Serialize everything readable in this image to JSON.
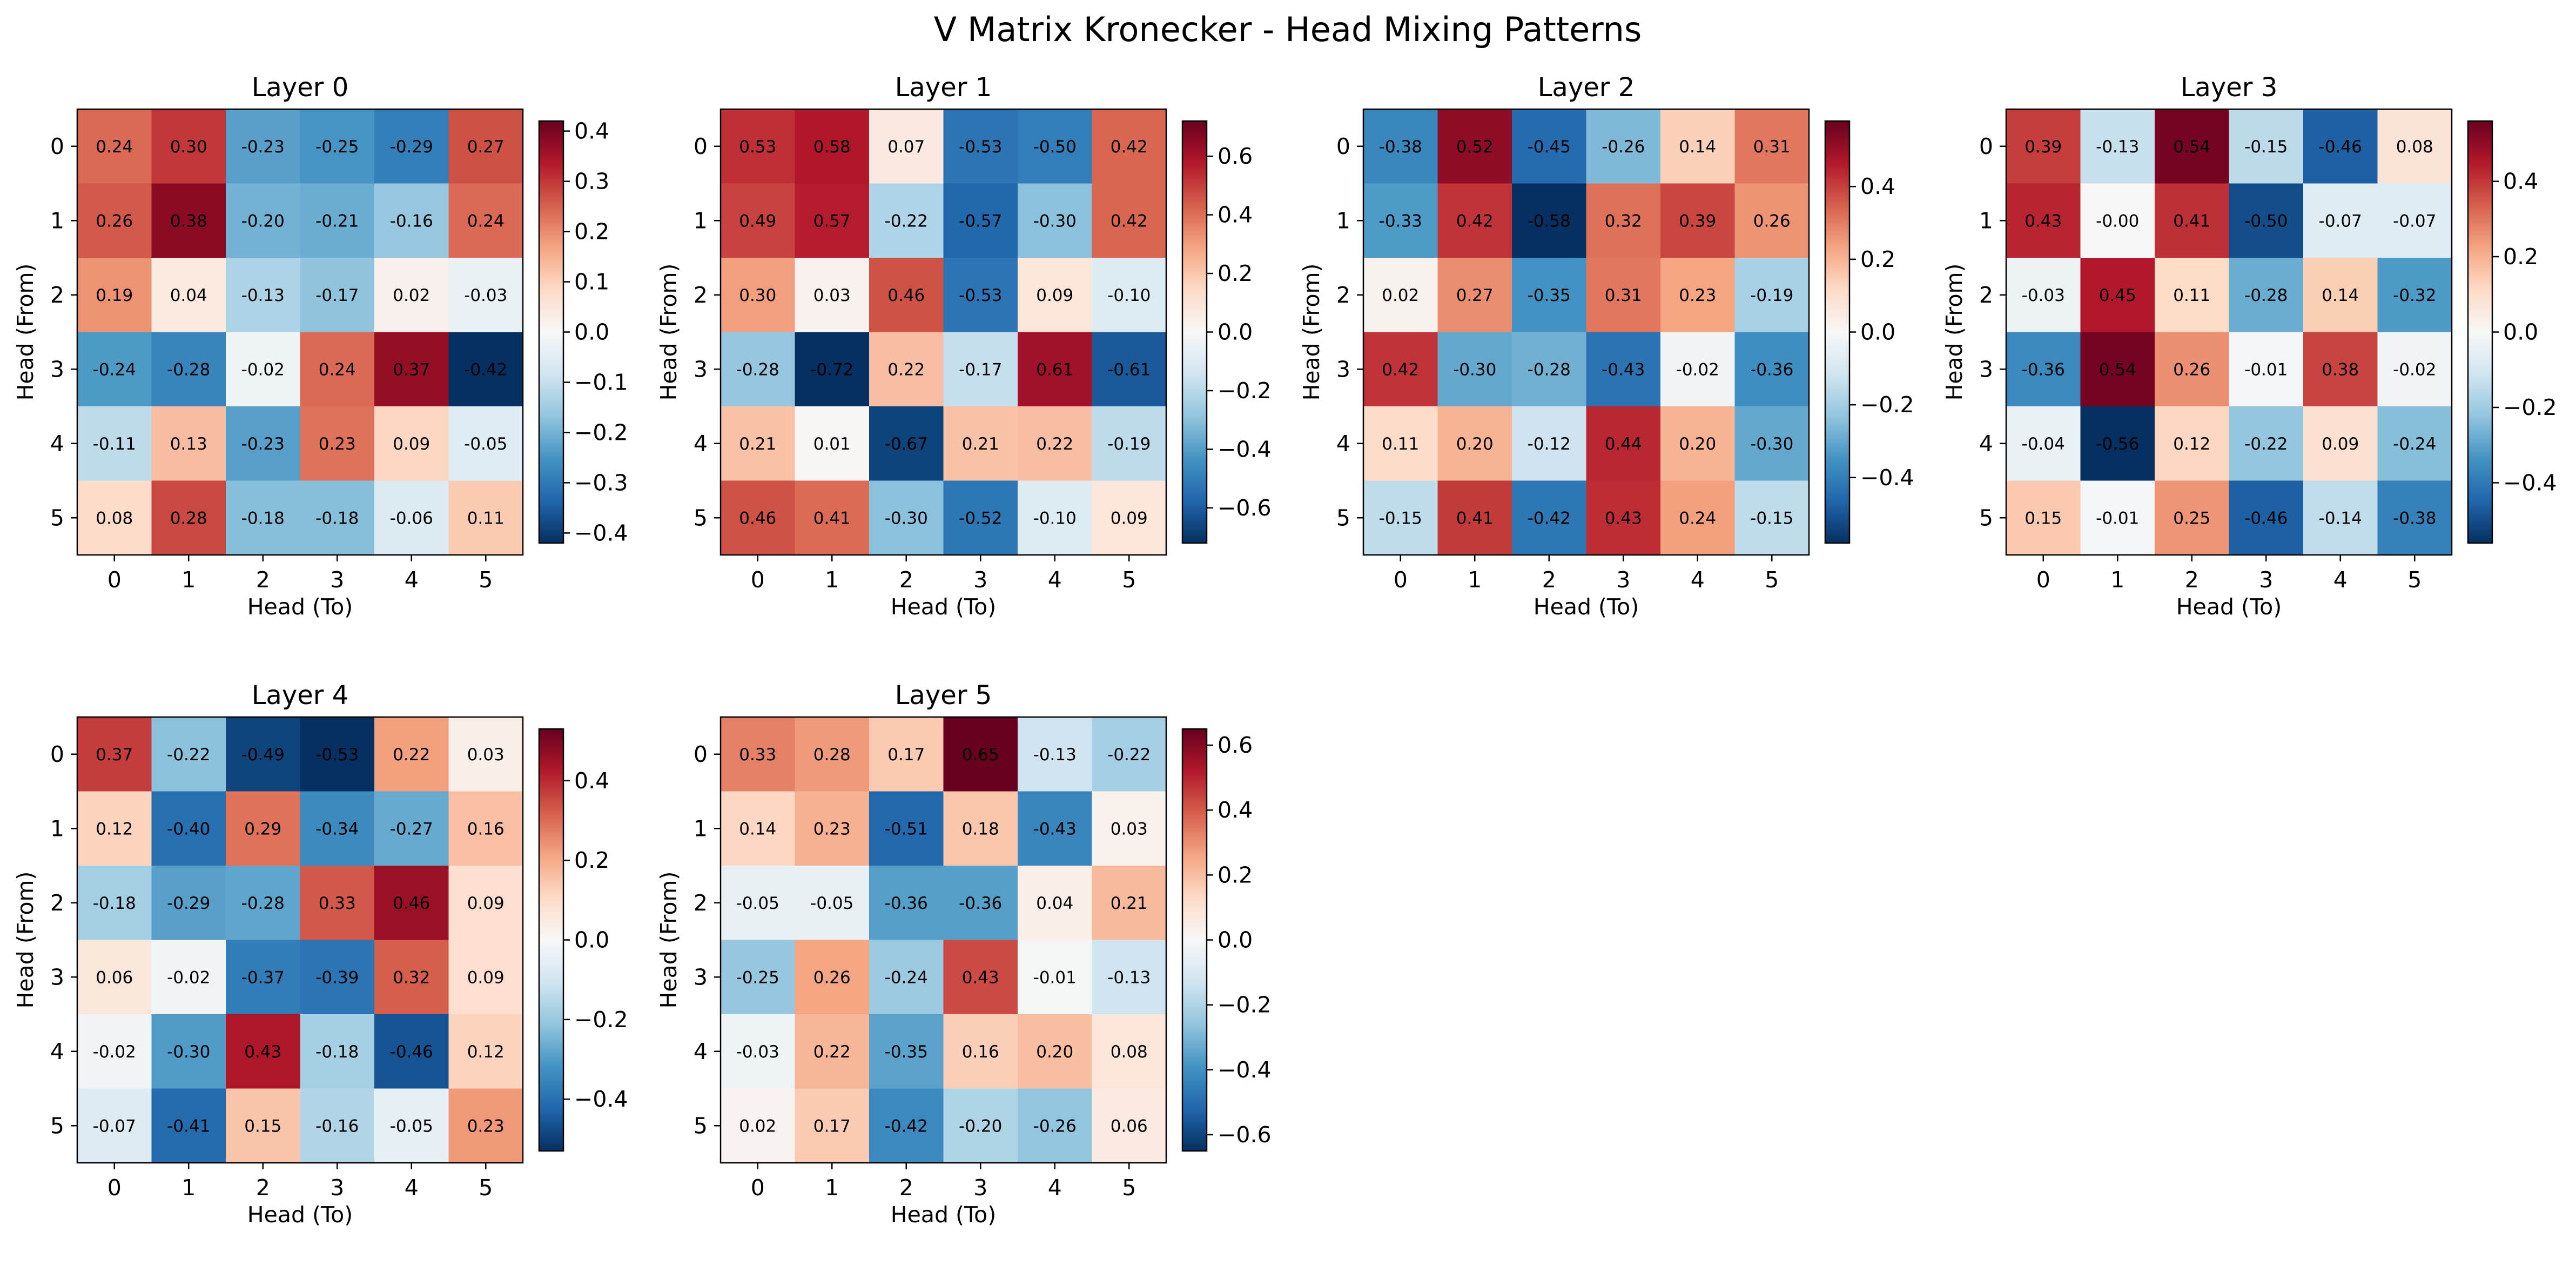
{
  "figure": {
    "title": "V Matrix Kronecker - Head Mixing Patterns"
  },
  "chart_data": [
    {
      "type": "heatmap",
      "title": "Layer 0",
      "xlabel": "Head (To)",
      "ylabel": "Head (From)",
      "x_ticks": [
        "0",
        "1",
        "2",
        "3",
        "4",
        "5"
      ],
      "y_ticks": [
        "0",
        "1",
        "2",
        "3",
        "4",
        "5"
      ],
      "colormap": "RdBu_r",
      "vmin": -0.42,
      "vmax": 0.42,
      "colorbar_ticks": [
        -0.4,
        -0.3,
        -0.2,
        -0.1,
        0.0,
        0.1,
        0.2,
        0.3,
        0.4
      ],
      "colorbar_tick_labels": [
        "−0.4",
        "−0.3",
        "−0.2",
        "−0.1",
        "0.0",
        "0.1",
        "0.2",
        "0.3",
        "0.4"
      ],
      "values": [
        [
          0.24,
          0.3,
          -0.23,
          -0.25,
          -0.29,
          0.27
        ],
        [
          0.26,
          0.38,
          -0.2,
          -0.21,
          -0.16,
          0.24
        ],
        [
          0.19,
          0.04,
          -0.13,
          -0.17,
          0.02,
          -0.03
        ],
        [
          -0.24,
          -0.28,
          -0.02,
          0.24,
          0.37,
          -0.42
        ],
        [
          -0.11,
          0.13,
          -0.23,
          0.23,
          0.09,
          -0.05
        ],
        [
          0.08,
          0.28,
          -0.18,
          -0.18,
          -0.06,
          0.11
        ]
      ],
      "labels": [
        [
          "0.24",
          "0.30",
          "-0.23",
          "-0.25",
          "-0.29",
          "0.27"
        ],
        [
          "0.26",
          "0.38",
          "-0.20",
          "-0.21",
          "-0.16",
          "0.24"
        ],
        [
          "0.19",
          "0.04",
          "-0.13",
          "-0.17",
          "0.02",
          "-0.03"
        ],
        [
          "-0.24",
          "-0.28",
          "-0.02",
          "0.24",
          "0.37",
          "-0.42"
        ],
        [
          "-0.11",
          "0.13",
          "-0.23",
          "0.23",
          "0.09",
          "-0.05"
        ],
        [
          "0.08",
          "0.28",
          "-0.18",
          "-0.18",
          "-0.06",
          "0.11"
        ]
      ]
    },
    {
      "type": "heatmap",
      "title": "Layer 1",
      "xlabel": "Head (To)",
      "ylabel": "Head (From)",
      "x_ticks": [
        "0",
        "1",
        "2",
        "3",
        "4",
        "5"
      ],
      "y_ticks": [
        "0",
        "1",
        "2",
        "3",
        "4",
        "5"
      ],
      "colormap": "RdBu_r",
      "vmin": -0.72,
      "vmax": 0.72,
      "colorbar_ticks": [
        -0.6,
        -0.4,
        -0.2,
        0.0,
        0.2,
        0.4,
        0.6
      ],
      "colorbar_tick_labels": [
        "−0.6",
        "−0.4",
        "−0.2",
        "0.0",
        "0.2",
        "0.4",
        "0.6"
      ],
      "values": [
        [
          0.53,
          0.58,
          0.07,
          -0.53,
          -0.5,
          0.42
        ],
        [
          0.49,
          0.57,
          -0.22,
          -0.57,
          -0.3,
          0.42
        ],
        [
          0.3,
          0.03,
          0.46,
          -0.53,
          0.09,
          -0.1
        ],
        [
          -0.28,
          -0.72,
          0.22,
          -0.17,
          0.61,
          -0.61
        ],
        [
          0.21,
          0.01,
          -0.67,
          0.21,
          0.22,
          -0.19
        ],
        [
          0.46,
          0.41,
          -0.3,
          -0.52,
          -0.1,
          0.09
        ]
      ],
      "labels": [
        [
          "0.53",
          "0.58",
          "0.07",
          "-0.53",
          "-0.50",
          "0.42"
        ],
        [
          "0.49",
          "0.57",
          "-0.22",
          "-0.57",
          "-0.30",
          "0.42"
        ],
        [
          "0.30",
          "0.03",
          "0.46",
          "-0.53",
          "0.09",
          "-0.10"
        ],
        [
          "-0.28",
          "-0.72",
          "0.22",
          "-0.17",
          "0.61",
          "-0.61"
        ],
        [
          "0.21",
          "0.01",
          "-0.67",
          "0.21",
          "0.22",
          "-0.19"
        ],
        [
          "0.46",
          "0.41",
          "-0.30",
          "-0.52",
          "-0.10",
          "0.09"
        ]
      ]
    },
    {
      "type": "heatmap",
      "title": "Layer 2",
      "xlabel": "Head (To)",
      "ylabel": "Head (From)",
      "x_ticks": [
        "0",
        "1",
        "2",
        "3",
        "4",
        "5"
      ],
      "y_ticks": [
        "0",
        "1",
        "2",
        "3",
        "4",
        "5"
      ],
      "colormap": "RdBu_r",
      "vmin": -0.58,
      "vmax": 0.58,
      "colorbar_ticks": [
        -0.4,
        -0.2,
        0.0,
        0.2,
        0.4
      ],
      "colorbar_tick_labels": [
        "−0.4",
        "−0.2",
        "0.0",
        "0.2",
        "0.4"
      ],
      "values": [
        [
          -0.38,
          0.52,
          -0.45,
          -0.26,
          0.14,
          0.31
        ],
        [
          -0.33,
          0.42,
          -0.58,
          0.32,
          0.39,
          0.26
        ],
        [
          0.02,
          0.27,
          -0.35,
          0.31,
          0.23,
          -0.19
        ],
        [
          0.42,
          -0.3,
          -0.28,
          -0.43,
          -0.02,
          -0.36
        ],
        [
          0.11,
          0.2,
          -0.12,
          0.44,
          0.2,
          -0.3
        ],
        [
          -0.15,
          0.41,
          -0.42,
          0.43,
          0.24,
          -0.15
        ]
      ],
      "labels": [
        [
          "-0.38",
          "0.52",
          "-0.45",
          "-0.26",
          "0.14",
          "0.31"
        ],
        [
          "-0.33",
          "0.42",
          "-0.58",
          "0.32",
          "0.39",
          "0.26"
        ],
        [
          "0.02",
          "0.27",
          "-0.35",
          "0.31",
          "0.23",
          "-0.19"
        ],
        [
          "0.42",
          "-0.30",
          "-0.28",
          "-0.43",
          "-0.02",
          "-0.36"
        ],
        [
          "0.11",
          "0.20",
          "-0.12",
          "0.44",
          "0.20",
          "-0.30"
        ],
        [
          "-0.15",
          "0.41",
          "-0.42",
          "0.43",
          "0.24",
          "-0.15"
        ]
      ]
    },
    {
      "type": "heatmap",
      "title": "Layer 3",
      "xlabel": "Head (To)",
      "ylabel": "Head (From)",
      "x_ticks": [
        "0",
        "1",
        "2",
        "3",
        "4",
        "5"
      ],
      "y_ticks": [
        "0",
        "1",
        "2",
        "3",
        "4",
        "5"
      ],
      "colormap": "RdBu_r",
      "vmin": -0.56,
      "vmax": 0.56,
      "colorbar_ticks": [
        -0.4,
        -0.2,
        0.0,
        0.2,
        0.4
      ],
      "colorbar_tick_labels": [
        "−0.4",
        "−0.2",
        "0.0",
        "0.2",
        "0.4"
      ],
      "values": [
        [
          0.39,
          -0.13,
          0.54,
          -0.15,
          -0.46,
          0.08
        ],
        [
          0.43,
          -0.0,
          0.41,
          -0.5,
          -0.07,
          -0.07
        ],
        [
          -0.03,
          0.45,
          0.11,
          -0.28,
          0.14,
          -0.32
        ],
        [
          -0.36,
          0.54,
          0.26,
          -0.01,
          0.38,
          -0.02
        ],
        [
          -0.04,
          -0.56,
          0.12,
          -0.22,
          0.09,
          -0.24
        ],
        [
          0.15,
          -0.01,
          0.25,
          -0.46,
          -0.14,
          -0.38
        ]
      ],
      "labels": [
        [
          "0.39",
          "-0.13",
          "0.54",
          "-0.15",
          "-0.46",
          "0.08"
        ],
        [
          "0.43",
          "-0.00",
          "0.41",
          "-0.50",
          "-0.07",
          "-0.07"
        ],
        [
          "-0.03",
          "0.45",
          "0.11",
          "-0.28",
          "0.14",
          "-0.32"
        ],
        [
          "-0.36",
          "0.54",
          "0.26",
          "-0.01",
          "0.38",
          "-0.02"
        ],
        [
          "-0.04",
          "-0.56",
          "0.12",
          "-0.22",
          "0.09",
          "-0.24"
        ],
        [
          "0.15",
          "-0.01",
          "0.25",
          "-0.46",
          "-0.14",
          "-0.38"
        ]
      ]
    },
    {
      "type": "heatmap",
      "title": "Layer 4",
      "xlabel": "Head (To)",
      "ylabel": "Head (From)",
      "x_ticks": [
        "0",
        "1",
        "2",
        "3",
        "4",
        "5"
      ],
      "y_ticks": [
        "0",
        "1",
        "2",
        "3",
        "4",
        "5"
      ],
      "colormap": "RdBu_r",
      "vmin": -0.53,
      "vmax": 0.53,
      "colorbar_ticks": [
        -0.4,
        -0.2,
        0.0,
        0.2,
        0.4
      ],
      "colorbar_tick_labels": [
        "−0.4",
        "−0.2",
        "0.0",
        "0.2",
        "0.4"
      ],
      "values": [
        [
          0.37,
          -0.22,
          -0.49,
          -0.53,
          0.22,
          0.03
        ],
        [
          0.12,
          -0.4,
          0.29,
          -0.34,
          -0.27,
          0.16
        ],
        [
          -0.18,
          -0.29,
          -0.28,
          0.33,
          0.46,
          0.09
        ],
        [
          0.06,
          -0.02,
          -0.37,
          -0.39,
          0.32,
          0.09
        ],
        [
          -0.02,
          -0.3,
          0.43,
          -0.18,
          -0.46,
          0.12
        ],
        [
          -0.07,
          -0.41,
          0.15,
          -0.16,
          -0.05,
          0.23
        ]
      ],
      "labels": [
        [
          "0.37",
          "-0.22",
          "-0.49",
          "-0.53",
          "0.22",
          "0.03"
        ],
        [
          "0.12",
          "-0.40",
          "0.29",
          "-0.34",
          "-0.27",
          "0.16"
        ],
        [
          "-0.18",
          "-0.29",
          "-0.28",
          "0.33",
          "0.46",
          "0.09"
        ],
        [
          "0.06",
          "-0.02",
          "-0.37",
          "-0.39",
          "0.32",
          "0.09"
        ],
        [
          "-0.02",
          "-0.30",
          "0.43",
          "-0.18",
          "-0.46",
          "0.12"
        ],
        [
          "-0.07",
          "-0.41",
          "0.15",
          "-0.16",
          "-0.05",
          "0.23"
        ]
      ]
    },
    {
      "type": "heatmap",
      "title": "Layer 5",
      "xlabel": "Head (To)",
      "ylabel": "Head (From)",
      "x_ticks": [
        "0",
        "1",
        "2",
        "3",
        "4",
        "5"
      ],
      "y_ticks": [
        "0",
        "1",
        "2",
        "3",
        "4",
        "5"
      ],
      "colormap": "RdBu_r",
      "vmin": -0.65,
      "vmax": 0.65,
      "colorbar_ticks": [
        -0.6,
        -0.4,
        -0.2,
        0.0,
        0.2,
        0.4,
        0.6
      ],
      "colorbar_tick_labels": [
        "−0.6",
        "−0.4",
        "−0.2",
        "0.0",
        "0.2",
        "0.4",
        "0.6"
      ],
      "values": [
        [
          0.33,
          0.28,
          0.17,
          0.65,
          -0.13,
          -0.22
        ],
        [
          0.14,
          0.23,
          -0.51,
          0.18,
          -0.43,
          0.03
        ],
        [
          -0.05,
          -0.05,
          -0.36,
          -0.36,
          0.04,
          0.21
        ],
        [
          -0.25,
          0.26,
          -0.24,
          0.43,
          -0.01,
          -0.13
        ],
        [
          -0.03,
          0.22,
          -0.35,
          0.16,
          0.2,
          0.08
        ],
        [
          0.02,
          0.17,
          -0.42,
          -0.2,
          -0.26,
          0.06
        ]
      ],
      "labels": [
        [
          "0.33",
          "0.28",
          "0.17",
          "0.65",
          "-0.13",
          "-0.22"
        ],
        [
          "0.14",
          "0.23",
          "-0.51",
          "0.18",
          "-0.43",
          "0.03"
        ],
        [
          "-0.05",
          "-0.05",
          "-0.36",
          "-0.36",
          "0.04",
          "0.21"
        ],
        [
          "-0.25",
          "0.26",
          "-0.24",
          "0.43",
          "-0.01",
          "-0.13"
        ],
        [
          "-0.03",
          "0.22",
          "-0.35",
          "0.16",
          "0.20",
          "0.08"
        ],
        [
          "0.02",
          "0.17",
          "-0.42",
          "-0.20",
          "-0.26",
          "0.06"
        ]
      ]
    }
  ]
}
